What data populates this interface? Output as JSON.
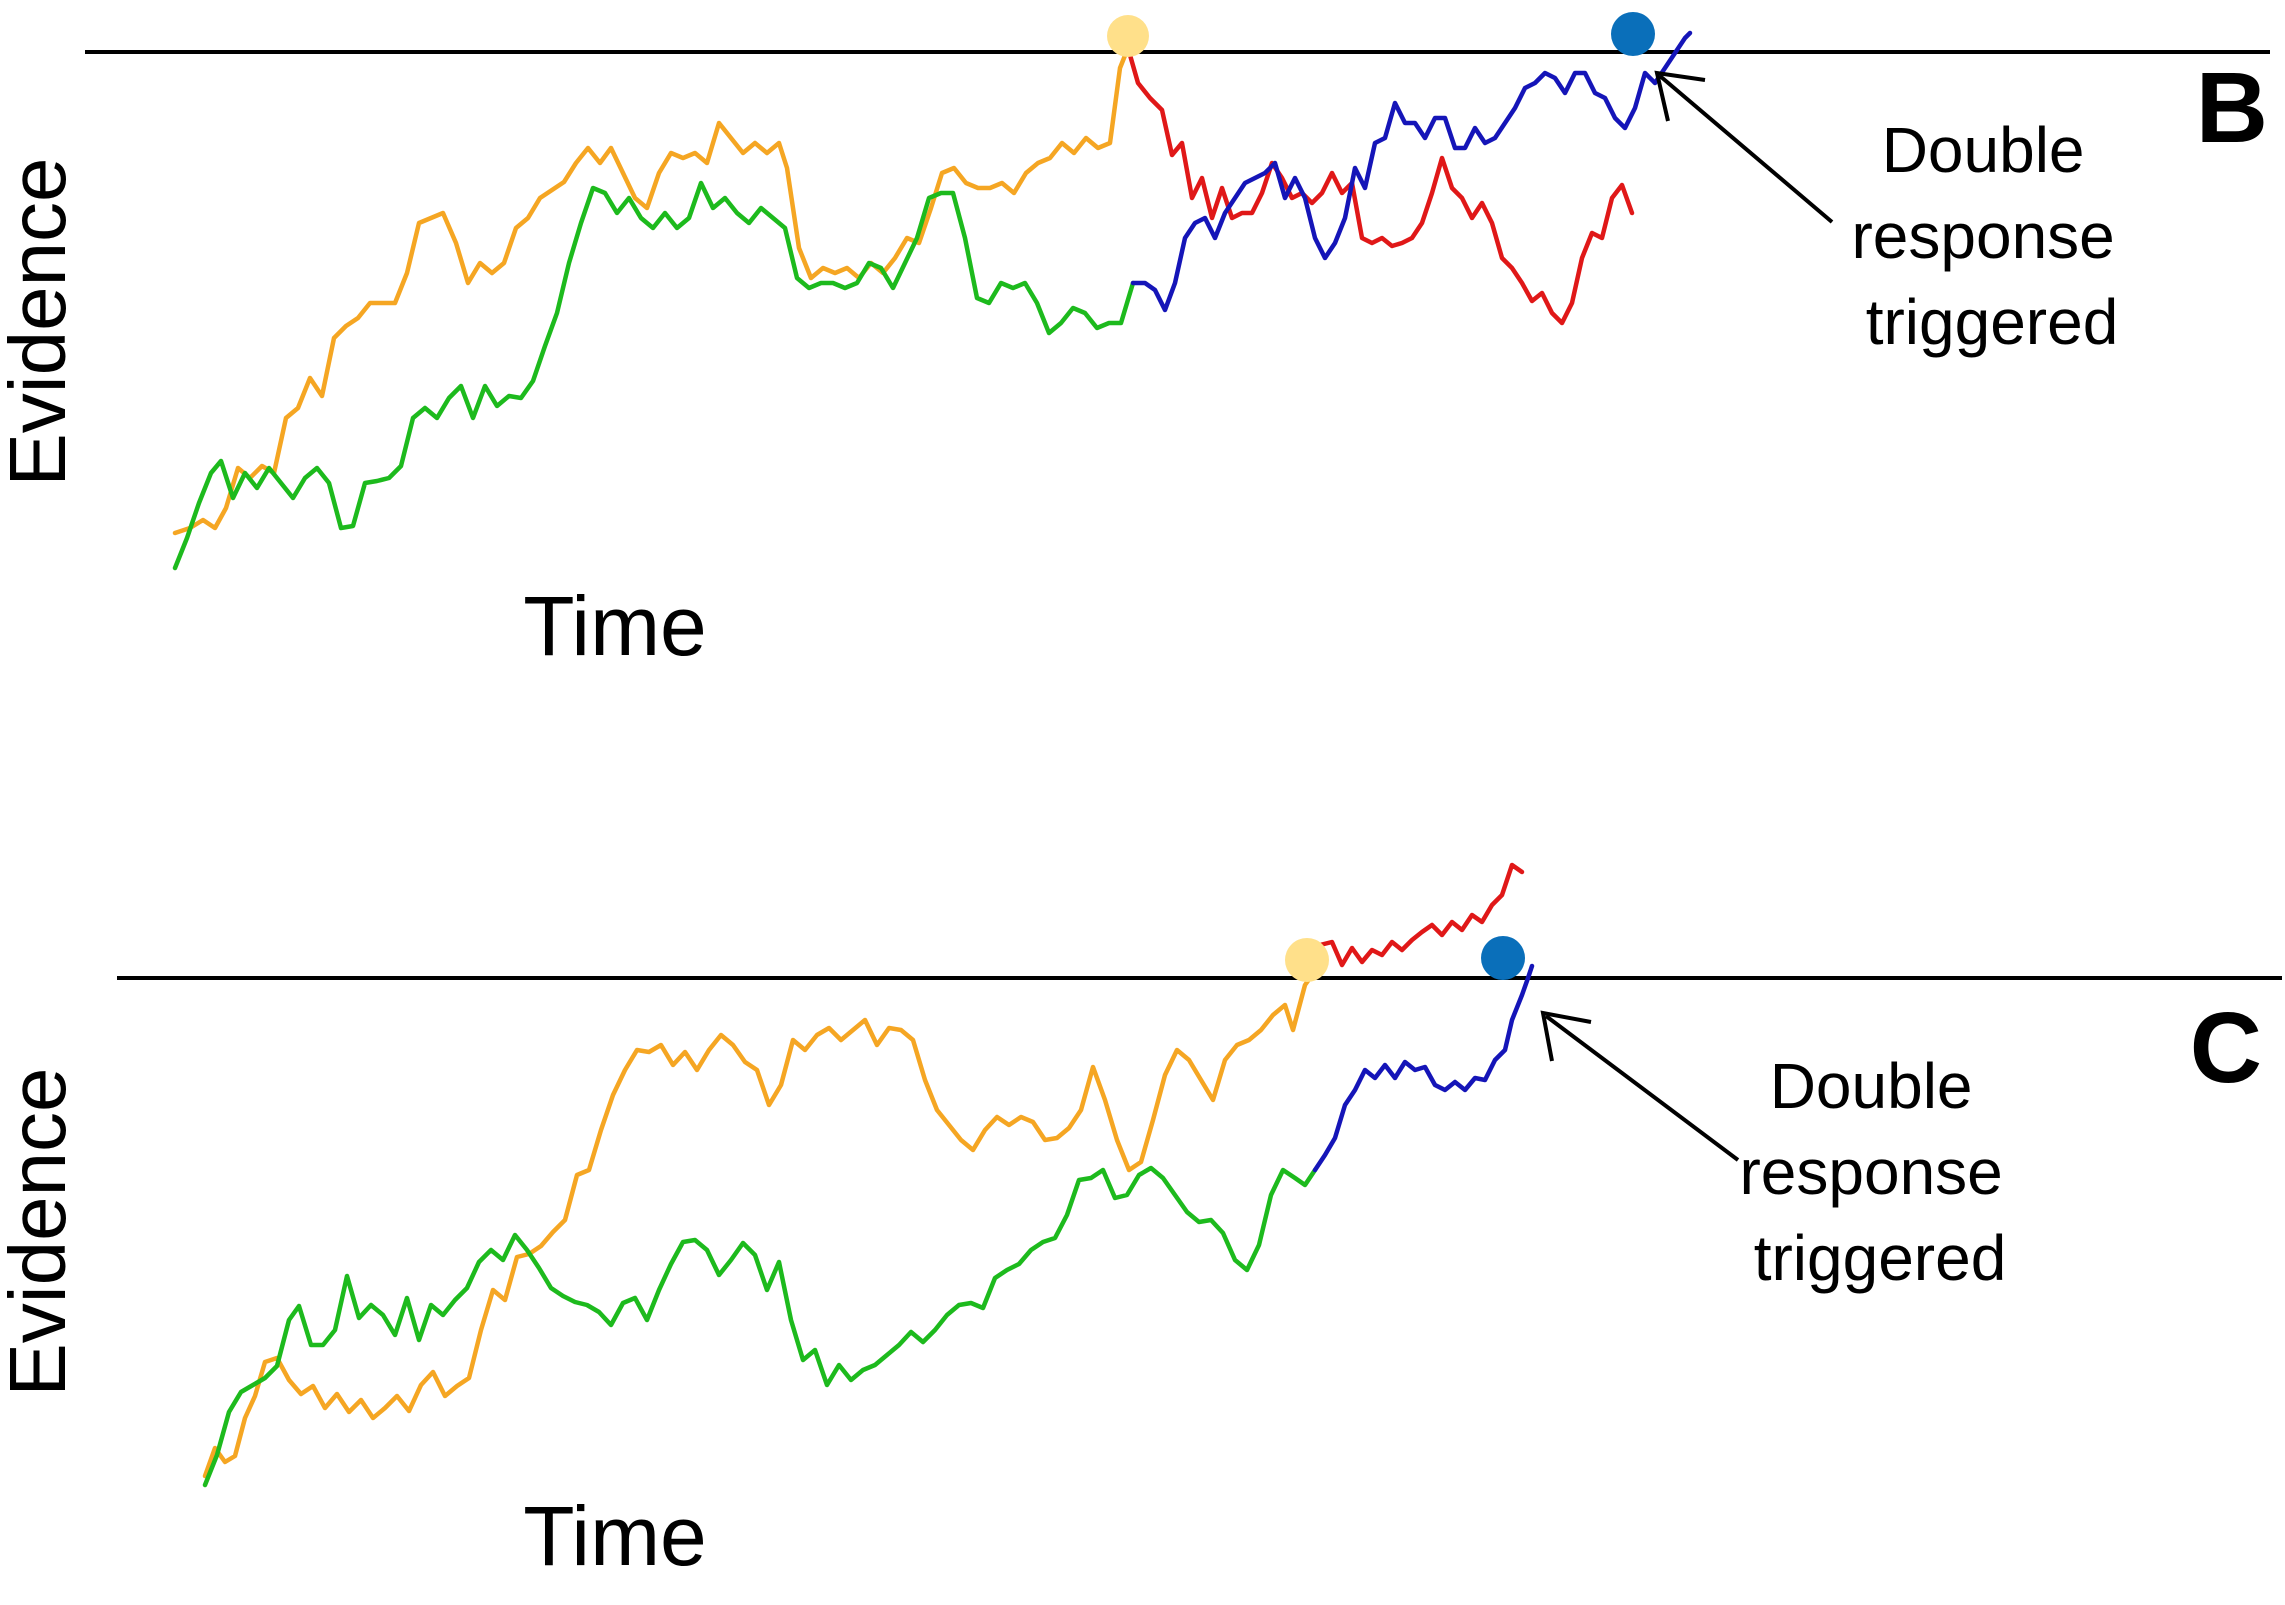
{
  "panels": [
    {
      "id": "B",
      "letter": "B",
      "y_label": "Evidence",
      "x_label": "Time",
      "annotation": [
        "Double",
        "response",
        "triggered"
      ]
    },
    {
      "id": "C",
      "letter": "C",
      "y_label": "Evidence",
      "x_label": "Time",
      "annotation": [
        "Double",
        "response",
        "triggered"
      ]
    }
  ],
  "colors": {
    "threshold": "#000000",
    "orange_trace": "#F5A623",
    "green_trace": "#1DBA1D",
    "red_trace": "#E01818",
    "blue_trace": "#1515B8",
    "first_response_marker": "#FFE08A",
    "second_response_marker": "#0A6FBA"
  }
}
